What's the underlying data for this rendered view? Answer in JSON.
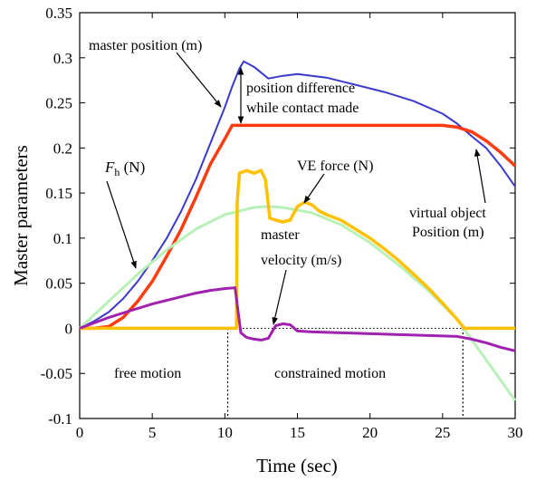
{
  "chart_data": {
    "type": "line",
    "xlabel": "Time (sec)",
    "ylabel": "Master parameters",
    "xlim": [
      0,
      30
    ],
    "ylim": [
      -0.1,
      0.35
    ],
    "xticks": [
      "0",
      "5",
      "10",
      "15",
      "20",
      "25",
      "30"
    ],
    "yticks": [
      "-0.1",
      "-0.05",
      "0",
      "0.05",
      "0.1",
      "0.15",
      "0.2",
      "0.25",
      "0.3",
      "0.35"
    ],
    "grid": false,
    "series": [
      {
        "name": "master position (m)",
        "color": "#3a3acc",
        "x": [
          0,
          1,
          2,
          3,
          4,
          5,
          6,
          7,
          8,
          9,
          10,
          10.5,
          11,
          11.3,
          12,
          13,
          14,
          15,
          17,
          19,
          21,
          23,
          25,
          26,
          27,
          28,
          29,
          30
        ],
        "y": [
          0,
          0.008,
          0.018,
          0.033,
          0.052,
          0.075,
          0.1,
          0.13,
          0.165,
          0.205,
          0.245,
          0.268,
          0.288,
          0.296,
          0.29,
          0.277,
          0.28,
          0.282,
          0.278,
          0.27,
          0.262,
          0.252,
          0.238,
          0.227,
          0.213,
          0.2,
          0.18,
          0.157
        ]
      },
      {
        "name": "virtual object Position (m)",
        "color": "#ff3b10",
        "x": [
          0,
          1,
          2,
          3,
          4,
          5,
          6,
          7,
          8,
          9,
          10,
          10.5,
          11,
          15,
          20,
          25,
          26,
          27,
          28,
          29,
          30
        ],
        "y": [
          0,
          0,
          0.002,
          0.012,
          0.03,
          0.052,
          0.08,
          0.11,
          0.145,
          0.182,
          0.21,
          0.225,
          0.225,
          0.225,
          0.225,
          0.225,
          0.223,
          0.218,
          0.208,
          0.195,
          0.18
        ]
      },
      {
        "name": "Fh (N)",
        "color": "#b8f0b8",
        "x": [
          0,
          2,
          4,
          6,
          8,
          10,
          12,
          13,
          14,
          16,
          18,
          20,
          22,
          24,
          26,
          28,
          30
        ],
        "y": [
          0,
          0.03,
          0.06,
          0.087,
          0.11,
          0.126,
          0.134,
          0.135,
          0.134,
          0.128,
          0.115,
          0.095,
          0.07,
          0.042,
          0.01,
          -0.035,
          -0.08
        ]
      },
      {
        "name": "VE force (N)",
        "color": "#ffc000",
        "x": [
          0,
          10.8,
          10.85,
          11,
          11.5,
          12,
          12.5,
          12.8,
          13.1,
          13.5,
          14,
          14.5,
          15,
          15.5,
          16,
          16.5,
          17,
          18,
          19,
          20,
          21,
          22,
          23,
          24,
          25,
          26,
          26.5,
          27,
          30
        ],
        "y": [
          0,
          0,
          0.14,
          0.172,
          0.175,
          0.172,
          0.175,
          0.165,
          0.122,
          0.12,
          0.118,
          0.12,
          0.135,
          0.14,
          0.137,
          0.13,
          0.126,
          0.12,
          0.11,
          0.1,
          0.088,
          0.075,
          0.06,
          0.045,
          0.028,
          0.01,
          0,
          0,
          0
        ]
      },
      {
        "name": "master velocity (m/s)",
        "color": "#a020b0",
        "x": [
          0,
          1,
          2,
          3,
          4,
          5,
          6,
          7,
          8,
          9,
          10,
          10.7,
          10.9,
          11.1,
          11.5,
          12,
          12.5,
          13,
          13.5,
          14,
          14.5,
          15,
          16,
          18,
          20,
          22,
          24,
          26,
          27,
          28,
          29,
          30
        ],
        "y": [
          0,
          0.006,
          0.012,
          0.017,
          0.022,
          0.027,
          0.031,
          0.035,
          0.039,
          0.042,
          0.044,
          0.045,
          0.02,
          -0.005,
          -0.01,
          -0.012,
          -0.013,
          -0.011,
          0.003,
          0.005,
          0.004,
          -0.003,
          -0.004,
          -0.005,
          -0.006,
          -0.007,
          -0.008,
          -0.009,
          -0.012,
          -0.016,
          -0.021,
          -0.025
        ]
      }
    ],
    "reference_line": {
      "y": 0,
      "style": "dotted"
    },
    "annotations": {
      "master_position": "master position (m)",
      "position_difference": [
        "position difference",
        "while contact made"
      ],
      "fh_symbol": "F",
      "fh_subscript": "h",
      "fh_unit": " (N)",
      "ve_force": "VE force (N)",
      "master_velocity": [
        "master",
        "velocity (m/s)"
      ],
      "virtual_object": [
        "virtual object",
        "Position (m)"
      ],
      "free_motion": "free motion",
      "constrained_motion": "constrained motion"
    },
    "markers": {
      "contact_start_x": 10.2,
      "contact_end_x": 26.4
    }
  }
}
